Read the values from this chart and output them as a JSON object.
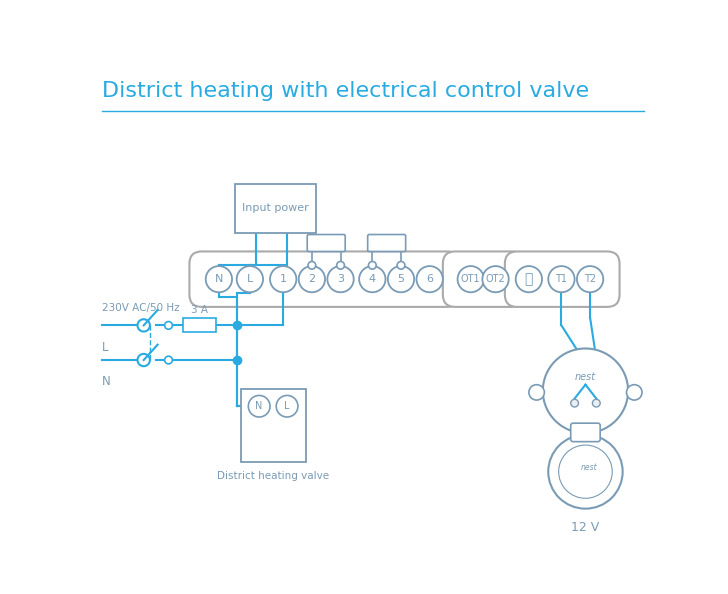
{
  "title": "District heating with electrical control valve",
  "title_color": "#29abe2",
  "title_fontsize": 16,
  "bg_color": "#ffffff",
  "line_color": "#29abe2",
  "device_color": "#7a9bb5",
  "label_230v": "230V AC/50 Hz",
  "label_L": "L",
  "label_N": "N",
  "label_3A": "3 A",
  "label_district": "District heating valve",
  "label_12v": "12 V",
  "label_nest": "nest"
}
